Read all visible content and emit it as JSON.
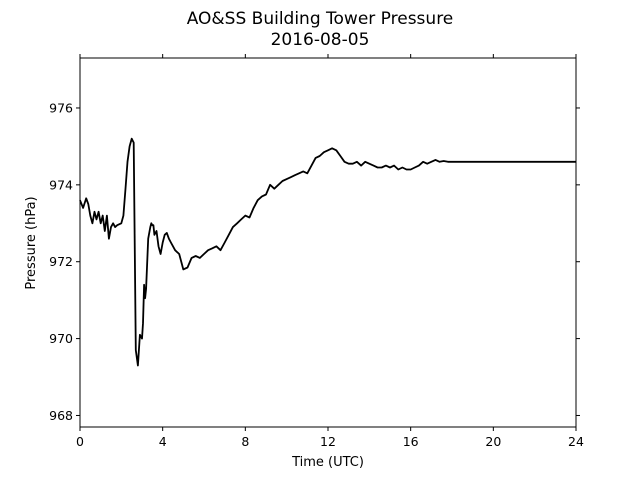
{
  "chart_data": {
    "type": "line",
    "title": "AO&SS Building Tower Pressure",
    "subtitle": "2016-08-05",
    "xlabel": "Time (UTC)",
    "ylabel": "Pressure (hPa)",
    "xlim": [
      0,
      24
    ],
    "ylim": [
      967.7,
      977.3
    ],
    "xticks": [
      "0",
      "4",
      "8",
      "12",
      "16",
      "20",
      "24"
    ],
    "yticks": [
      "968",
      "970",
      "972",
      "974",
      "976"
    ],
    "grid": false,
    "legend": false,
    "colors": {
      "line": "#000000",
      "axes": "#000000",
      "background": "#ffffff"
    },
    "series": [
      {
        "x": [
          0.0,
          0.15,
          0.3,
          0.4,
          0.5,
          0.6,
          0.7,
          0.8,
          0.9,
          1.0,
          1.1,
          1.2,
          1.3,
          1.4,
          1.5,
          1.6,
          1.7,
          1.8,
          2.0,
          2.1,
          2.2,
          2.3,
          2.4,
          2.5,
          2.6,
          2.7,
          2.8,
          2.9,
          3.0,
          3.05,
          3.1,
          3.15,
          3.2,
          3.3,
          3.4,
          3.45,
          3.5,
          3.55,
          3.6,
          3.7,
          3.8,
          3.9,
          4.0,
          4.1,
          4.2,
          4.3,
          4.4,
          4.5,
          4.6,
          4.7,
          4.8,
          5.0,
          5.2,
          5.4,
          5.6,
          5.8,
          6.0,
          6.2,
          6.4,
          6.6,
          6.8,
          7.0,
          7.2,
          7.4,
          7.6,
          7.8,
          8.0,
          8.2,
          8.4,
          8.6,
          8.8,
          9.0,
          9.2,
          9.4,
          9.6,
          9.8,
          10.0,
          10.2,
          10.4,
          10.6,
          10.8,
          11.0,
          11.2,
          11.4,
          11.6,
          11.8,
          12.0,
          12.2,
          12.4,
          12.6,
          12.8,
          13.0,
          13.2,
          13.4,
          13.6,
          13.8,
          14.0,
          14.2,
          14.4,
          14.6,
          14.8,
          15.0,
          15.2,
          15.4,
          15.6,
          15.8,
          16.0,
          16.2,
          16.4,
          16.6,
          16.8,
          17.0,
          17.2,
          17.4,
          17.6,
          17.8,
          18.0,
          18.2,
          18.4,
          18.6,
          18.8,
          19.0,
          19.2,
          19.4,
          19.6,
          19.8,
          20.0,
          20.2,
          20.4,
          20.6,
          20.8,
          21.0,
          21.2,
          21.4,
          21.6,
          21.8,
          22.0,
          22.2,
          22.4,
          22.6,
          22.8,
          23.0,
          23.2,
          23.4,
          23.6,
          23.8,
          24.0
        ],
        "y": [
          973.6,
          973.4,
          973.65,
          973.5,
          973.2,
          973.0,
          973.3,
          973.1,
          973.3,
          973.0,
          973.2,
          972.8,
          973.2,
          972.6,
          972.9,
          973.0,
          972.9,
          972.95,
          973.0,
          973.2,
          973.9,
          974.6,
          975.0,
          975.2,
          975.1,
          969.7,
          969.3,
          970.1,
          970.0,
          970.4,
          971.4,
          971.05,
          971.3,
          972.6,
          972.9,
          973.0,
          972.95,
          972.95,
          972.7,
          972.8,
          972.4,
          972.2,
          972.5,
          972.7,
          972.75,
          972.6,
          972.5,
          972.4,
          972.3,
          972.25,
          972.2,
          971.8,
          971.85,
          972.1,
          972.15,
          972.1,
          972.2,
          972.3,
          972.35,
          972.4,
          972.3,
          972.5,
          972.7,
          972.9,
          973.0,
          973.1,
          973.2,
          973.15,
          973.4,
          973.6,
          973.7,
          973.75,
          974.0,
          973.9,
          974.0,
          974.1,
          974.15,
          974.2,
          974.25,
          974.3,
          974.35,
          974.3,
          974.5,
          974.7,
          974.75,
          974.85,
          974.9,
          974.95,
          974.9,
          974.75,
          974.6,
          974.55,
          974.55,
          974.6,
          974.5,
          974.6,
          974.55,
          974.5,
          974.45,
          974.45,
          974.5,
          974.45,
          974.5,
          974.4,
          974.45,
          974.4,
          974.4,
          974.45,
          974.5,
          974.6,
          974.55,
          974.6,
          974.65,
          974.6,
          974.62,
          974.6,
          974.6,
          974.6,
          974.6,
          974.6,
          974.6,
          974.6,
          974.6,
          974.6,
          974.6,
          974.6,
          974.6,
          974.6,
          974.6,
          974.6,
          974.6,
          974.6,
          974.6,
          974.6,
          974.6,
          974.6,
          974.6,
          974.6,
          974.6,
          974.6,
          974.6,
          974.6,
          974.6,
          974.6,
          974.6,
          974.6,
          974.6
        ]
      }
    ]
  }
}
